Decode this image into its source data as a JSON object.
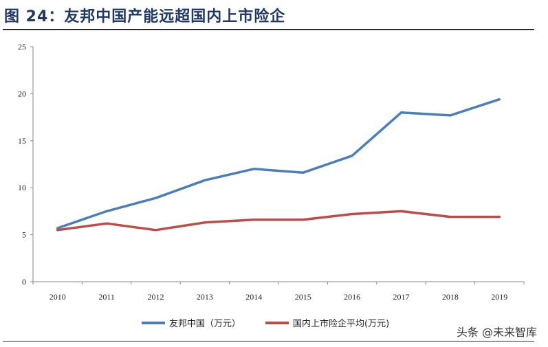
{
  "header": {
    "title": "图 24：友邦中国产能远超国内上市险企"
  },
  "watermark": "头条 @未来智库",
  "chart_data": {
    "type": "line",
    "categories": [
      "2010",
      "2011",
      "2012",
      "2013",
      "2014",
      "2015",
      "2016",
      "2017",
      "2018",
      "2019"
    ],
    "series": [
      {
        "name": "友邦中国（万元）",
        "color": "#4a7ebb",
        "values": [
          5.7,
          7.5,
          8.9,
          10.8,
          12.0,
          11.6,
          13.4,
          18.0,
          17.7,
          19.4
        ]
      },
      {
        "name": "国内上市险企平均(万元)",
        "color": "#be4b48",
        "values": [
          5.5,
          6.2,
          5.5,
          6.3,
          6.6,
          6.6,
          7.2,
          7.5,
          6.9,
          6.9
        ]
      }
    ],
    "ylim": [
      0,
      25
    ],
    "yticks": [
      "0",
      "5",
      "10",
      "15",
      "20",
      "25"
    ],
    "grid": false,
    "legend_position": "bottom"
  }
}
